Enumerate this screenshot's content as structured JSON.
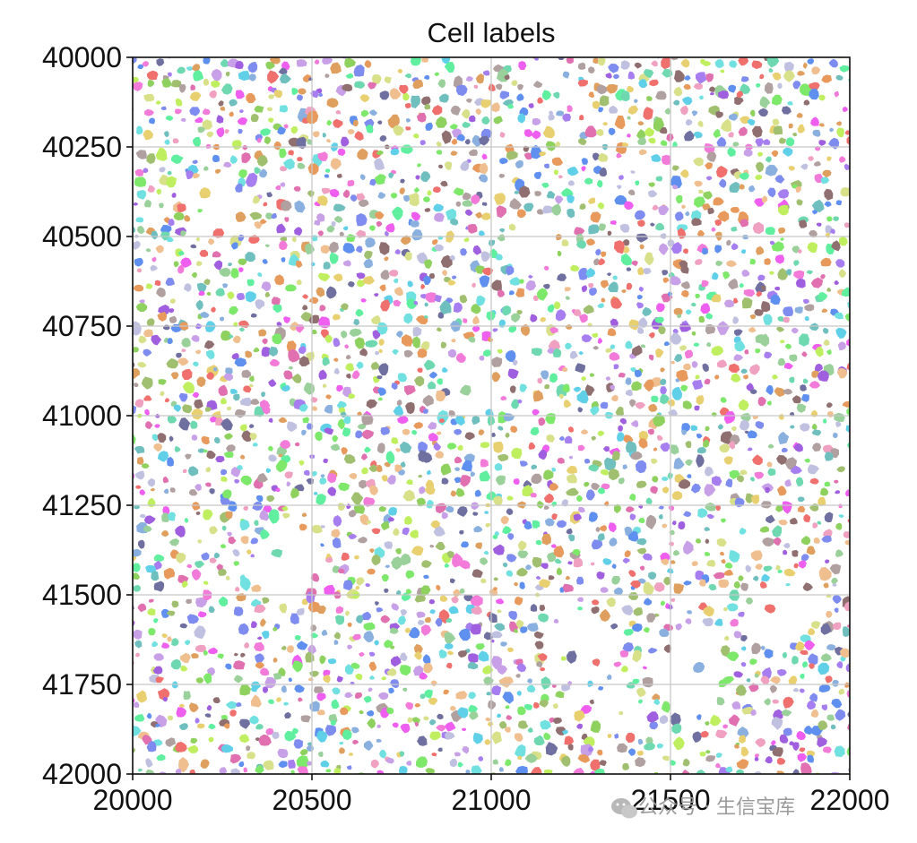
{
  "chart_data": {
    "type": "scatter",
    "title": "Cell labels",
    "xlabel": "",
    "ylabel": "",
    "xlim": [
      20000,
      22000
    ],
    "ylim": [
      40000,
      42000
    ],
    "y_inverted": true,
    "grid": true,
    "xticks": [
      "20000",
      "20500",
      "21000",
      "21500",
      "22000"
    ],
    "yticks": [
      "40000",
      "40250",
      "40500",
      "40750",
      "41000",
      "41250",
      "41500",
      "41750",
      "42000"
    ],
    "xtick_values": [
      20000,
      20500,
      21000,
      21500,
      22000
    ],
    "ytick_values": [
      40000,
      40250,
      40500,
      40750,
      41000,
      41250,
      41500,
      41750,
      42000
    ],
    "cell_segmentation": {
      "cell_radius_range": [
        12,
        34
      ],
      "palette": [
        "#f27ad9",
        "#7ee86a",
        "#a77ef0",
        "#5fd0e8",
        "#e8d070",
        "#f0706e",
        "#7e8cf0",
        "#9ad09a",
        "#c8a0e8",
        "#6ed8b0",
        "#e89a5c",
        "#8ab0e0",
        "#d8e08a",
        "#b0a0a0",
        "#e070b0",
        "#70e0e0",
        "#a0c070",
        "#f0a0c0",
        "#7070a0",
        "#c0c0e0",
        "#8fd15f",
        "#ef5fef",
        "#5f8fef",
        "#efbf8f",
        "#8f6f6f",
        "#bfef5f",
        "#5fef9f",
        "#9f5fdf",
        "#df9f5f",
        "#6fbfbf"
      ],
      "empty_regions": [
        {
          "x": 20430,
          "y": 41400,
          "r": 90
        },
        {
          "x": 20950,
          "y": 40920,
          "r": 80
        },
        {
          "x": 21100,
          "y": 40520,
          "r": 70
        },
        {
          "x": 21550,
          "y": 41720,
          "r": 110
        },
        {
          "x": 21800,
          "y": 41560,
          "r": 90
        },
        {
          "x": 21250,
          "y": 41640,
          "r": 100
        },
        {
          "x": 21700,
          "y": 41330,
          "r": 60
        },
        {
          "x": 20220,
          "y": 40400,
          "r": 80
        },
        {
          "x": 21350,
          "y": 41820,
          "r": 70
        },
        {
          "x": 20250,
          "y": 41600,
          "r": 60
        }
      ]
    }
  },
  "watermark": {
    "text": "公众号 · 生信宝库",
    "icon": "wechat-icon"
  }
}
